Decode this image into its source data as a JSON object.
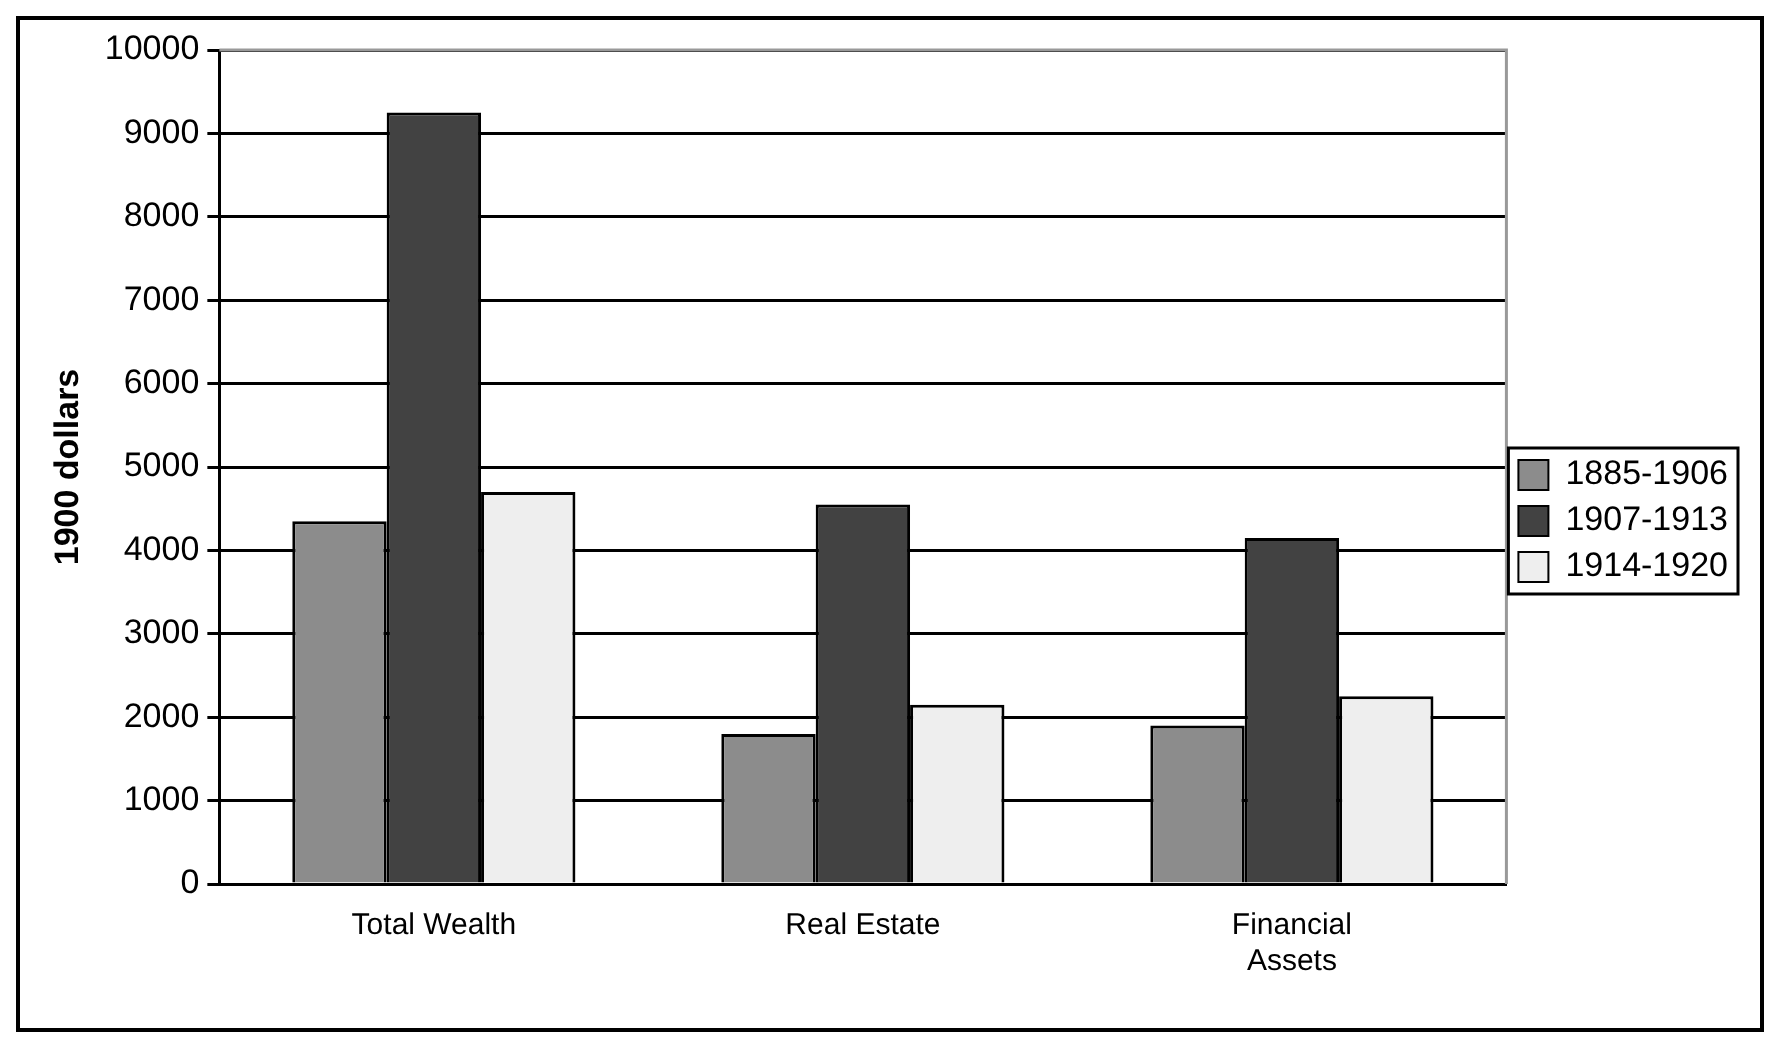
{
  "chart_data": {
    "type": "bar",
    "ylabel": "1900 dollars",
    "categories": [
      "Total Wealth",
      "Real Estate",
      "Financial Assets"
    ],
    "series": [
      {
        "name": "1885-1906",
        "color": "#8c8c8c",
        "values": [
          4350,
          1800,
          1900
        ]
      },
      {
        "name": "1907-1913",
        "color": "#424242",
        "values": [
          9250,
          4550,
          4150
        ]
      },
      {
        "name": "1914-1920",
        "color": "#eeeeee",
        "values": [
          4700,
          2150,
          2250
        ]
      }
    ],
    "ylim": [
      0,
      10000
    ],
    "yticks": [
      0,
      1000,
      2000,
      3000,
      4000,
      5000,
      6000,
      7000,
      8000,
      9000,
      10000
    ],
    "grid": "y",
    "legend": "right"
  }
}
